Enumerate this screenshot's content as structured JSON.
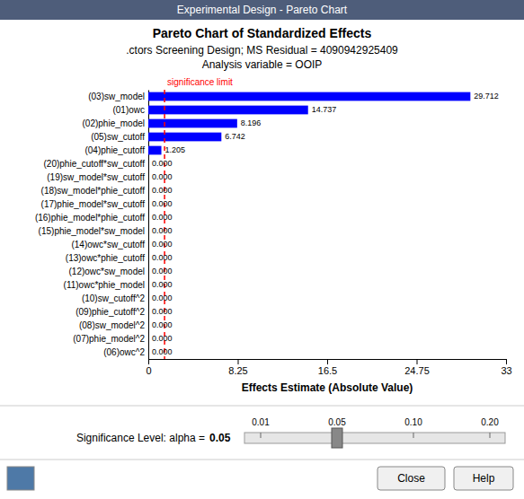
{
  "window": {
    "title_bar": "Experimental Design - Pareto Chart",
    "sig_level_text": "Significance Level: alpha =",
    "sig_level_value": "0.05",
    "sig_slider_ticks": [
      "0.01",
      "0.05",
      "0.10",
      "0.20"
    ],
    "close_btn": "Close",
    "help_btn": "Help"
  },
  "chart_data": {
    "type": "bar",
    "orientation": "horizontal",
    "title": "Pareto Chart of Standardized Effects",
    "subtitle": [
      ".ctors Screening Design; MS Residual = 4090942925409",
      "Analysis variable = OOIP"
    ],
    "xlabel": "Effects Estimate (Absolute Value)",
    "categories": [
      "(03)sw_model",
      "(01)owc",
      "(02)phie_model",
      "(05)sw_cutoff",
      "(04)phie_cutoff",
      "(20)phie_cutoff*sw_cutoff",
      "(19)sw_model*sw_cutoff",
      "(18)sw_model*phie_cutoff",
      "(17)phie_model*sw_cutoff",
      "(16)phie_model*phie_cutoff",
      "(15)phie_model*sw_model",
      "(14)owc*sw_cutoff",
      "(13)owc*phie_cutoff",
      "(12)owc*sw_model",
      "(11)owc*phie_model",
      "(10)sw_cutoff^2",
      "(09)phie_cutoff^2",
      "(08)sw_model^2",
      "(07)phie_model^2",
      "(06)owc^2"
    ],
    "values": [
      29.712,
      14.737,
      8.196,
      6.742,
      1.205,
      0.0,
      0.0,
      0.0,
      0.0,
      0.0,
      0.0,
      0.0,
      0.0,
      0.0,
      0.0,
      0.0,
      0.0,
      0.0,
      0.0,
      0.0
    ],
    "value_labels": [
      "29.712",
      "14.737",
      "8.196",
      "6.742",
      "1.205",
      "0.000",
      "0.000",
      "0.000",
      "0.000",
      "0.000",
      "0.000",
      "0.000",
      "0.000",
      "0.000",
      "0.000",
      "0.000",
      "0.000",
      "0.000",
      "0.000",
      "0.000"
    ],
    "data_labels": true,
    "color": "#0000FF",
    "xlim": [
      0,
      33
    ],
    "xticks": [
      0,
      8.25,
      16.5,
      24.75,
      33
    ],
    "grid": false,
    "annotations": [
      {
        "x": 1.5,
        "text": "significance limit",
        "color": "#FF0000",
        "line_style": "dashed"
      }
    ]
  }
}
